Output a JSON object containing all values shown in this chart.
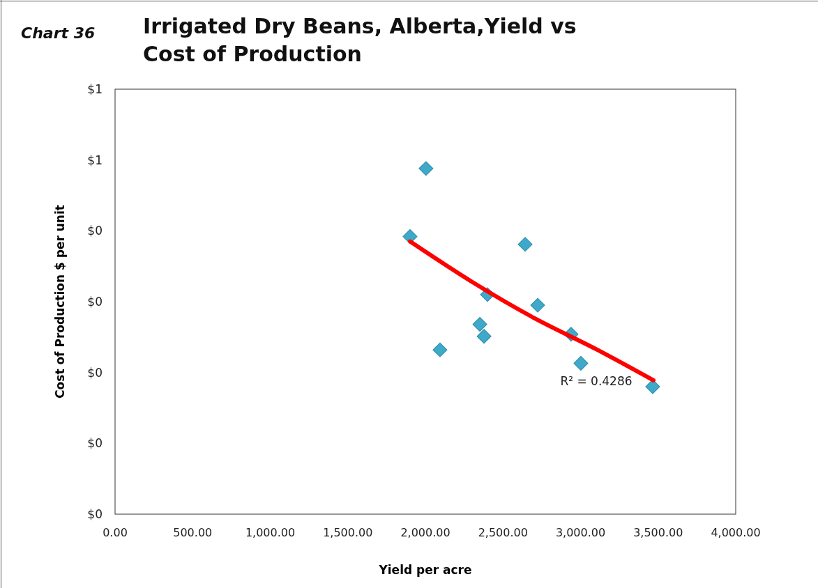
{
  "chart_data": {
    "type": "scatter",
    "title": "Irrigated Dry Beans, Alberta,Yield vs Cost of Production",
    "xlabel": "Yield per acre",
    "ylabel": "Cost of Production $ per unit",
    "annotations": [
      "Chart 36",
      "R² = 0.4286"
    ],
    "grid": false,
    "xlim": [
      0,
      4000
    ],
    "xticks": [
      {
        "value": 0,
        "label": "0.00"
      },
      {
        "value": 500,
        "label": "500.00"
      },
      {
        "value": 1000,
        "label": "1,000.00"
      },
      {
        "value": 1500,
        "label": "1,500.00"
      },
      {
        "value": 2000,
        "label": "2,000.00"
      },
      {
        "value": 2500,
        "label": "2,500.00"
      },
      {
        "value": 3000,
        "label": "3,000.00"
      },
      {
        "value": 3500,
        "label": "3,500.00"
      },
      {
        "value": 4000,
        "label": "4,000.00"
      }
    ],
    "ylim": [
      0,
      0.6
    ],
    "yticks": [
      {
        "value": 0,
        "label": "$0"
      },
      {
        "value": 0.1,
        "label": "$0"
      },
      {
        "value": 0.2,
        "label": "$0"
      },
      {
        "value": 0.3,
        "label": "$0"
      },
      {
        "value": 0.4,
        "label": "$0"
      },
      {
        "value": 0.5,
        "label": "$1"
      },
      {
        "value": 0.6,
        "label": "$1"
      }
    ],
    "series": [
      {
        "color": "#3fa9c9",
        "marker": "diamond",
        "x": [
          2004,
          1901,
          2643,
          2400,
          2724,
          2351,
          2378,
          2094,
          2939,
          3002,
          3465
        ],
        "values": [
          0.488,
          0.392,
          0.381,
          0.31,
          0.295,
          0.268,
          0.251,
          0.232,
          0.254,
          0.213,
          0.18
        ]
      },
      {
        "type": "line",
        "color": "#ff0000",
        "x": [
          1901,
          2300,
          2700,
          3100,
          3470
        ],
        "values": [
          0.385,
          0.328,
          0.277,
          0.233,
          0.189
        ]
      }
    ]
  }
}
